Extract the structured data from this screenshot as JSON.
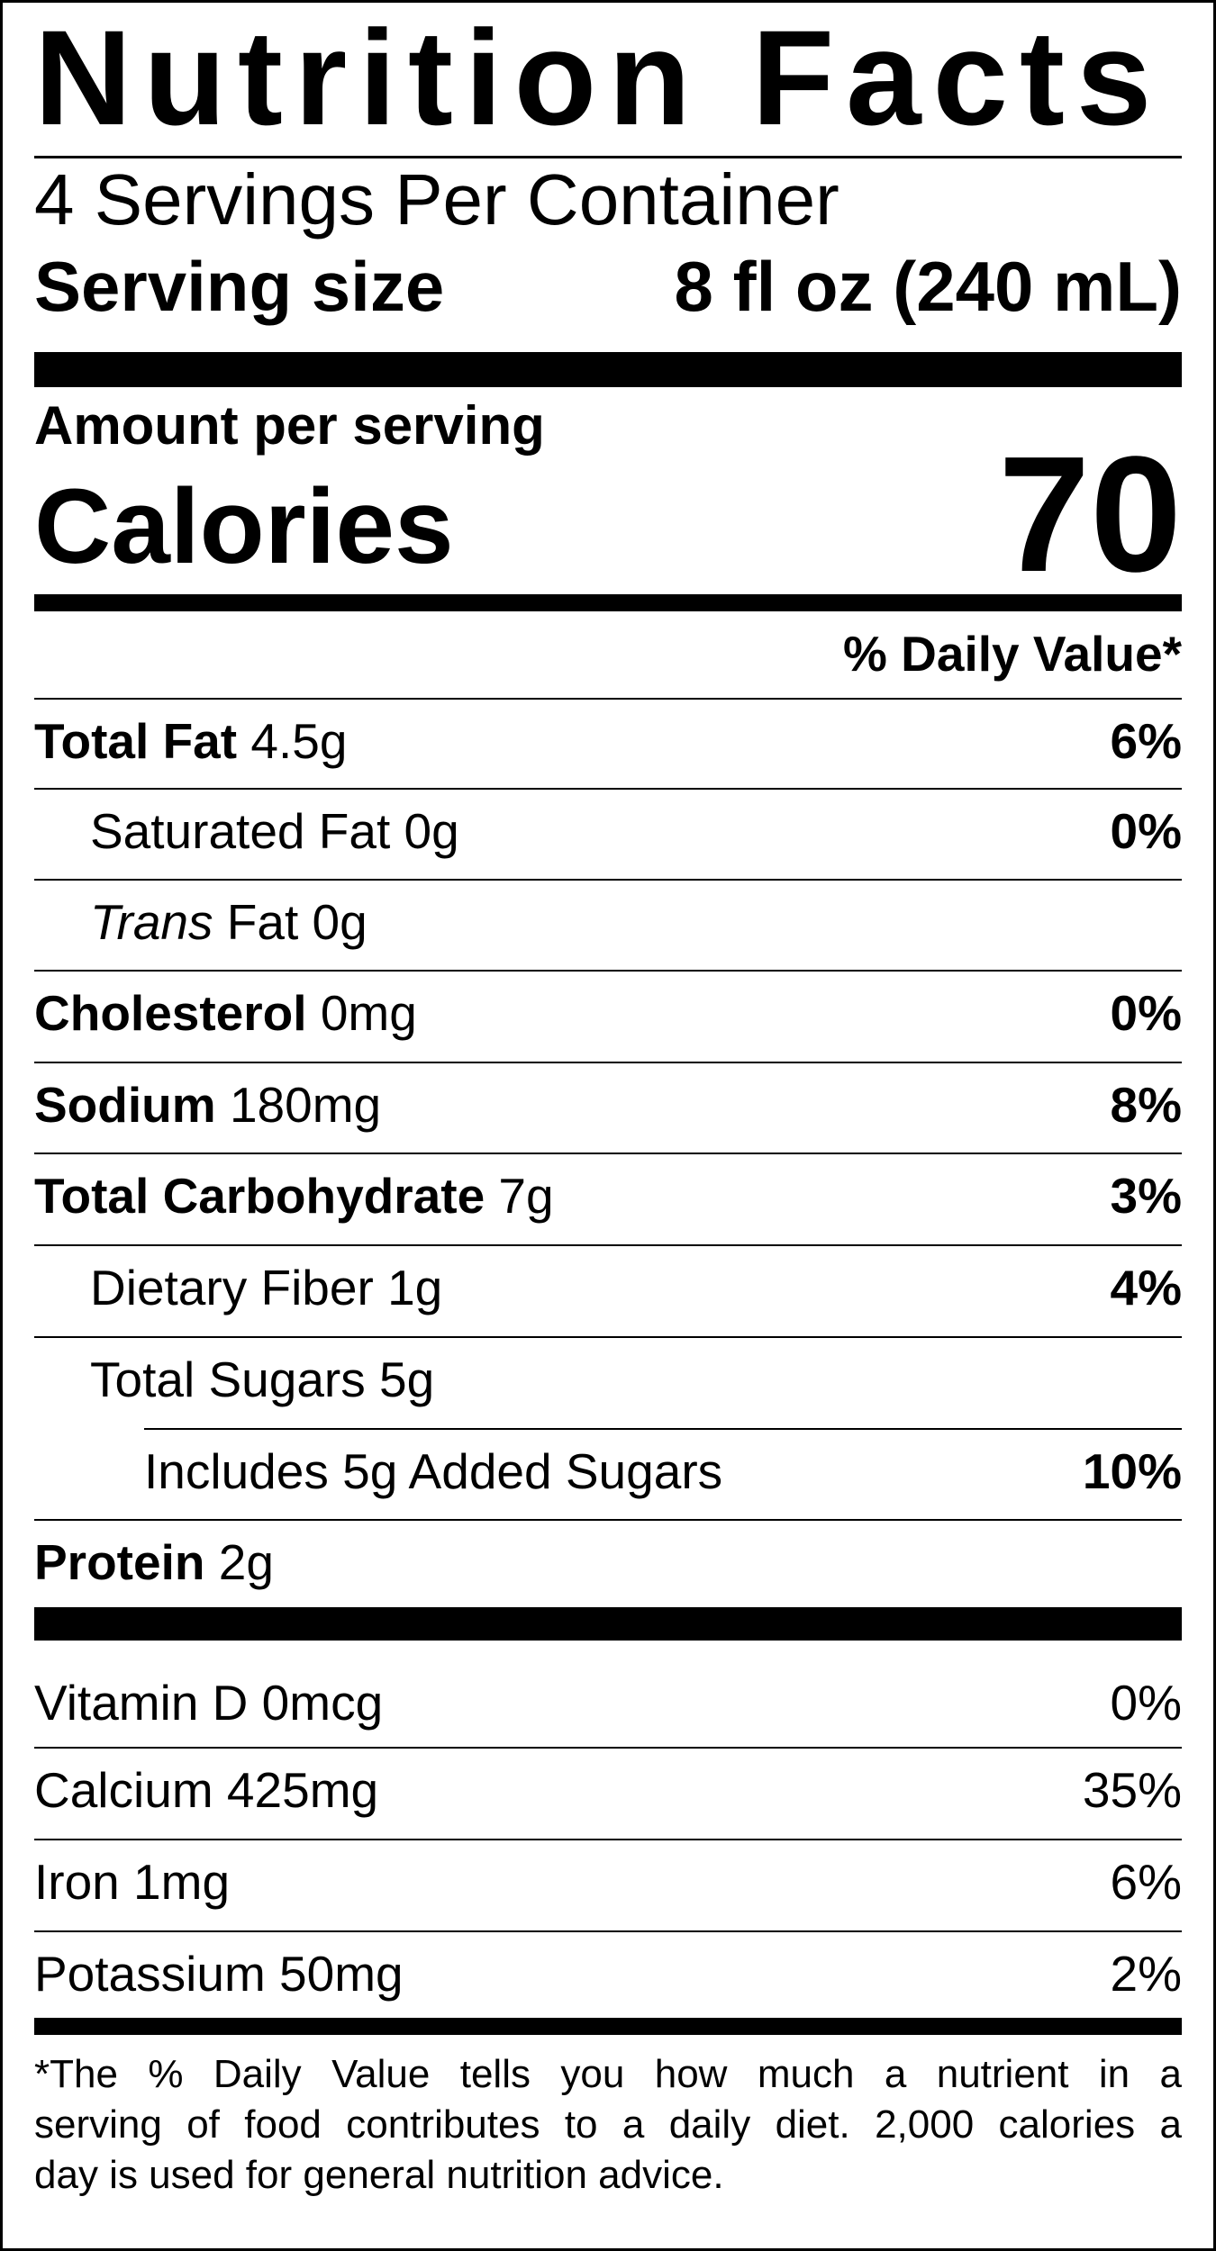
{
  "title": "Nutrition Facts",
  "servings_per_container": "4 Servings Per Container",
  "serving_size": {
    "label": "Serving size",
    "value": "8 fl oz (240 mL)"
  },
  "amount_per_serving": "Amount per serving",
  "calories": {
    "label": "Calories",
    "value": "70"
  },
  "daily_value_header": "% Daily Value*",
  "nutrients": [
    {
      "name": "Total Fat",
      "amount": "4.5g",
      "dv": "6%",
      "bold": true,
      "indent": 0
    },
    {
      "name": "Saturated Fat",
      "amount": "0g",
      "dv": "0%",
      "bold": false,
      "indent": 1
    },
    {
      "name": "Trans",
      "name_suffix": "Fat",
      "amount": "0g",
      "dv": "",
      "bold": false,
      "italic": true,
      "indent": 1
    },
    {
      "name": "Cholesterol",
      "amount": "0mg",
      "dv": "0%",
      "bold": true,
      "indent": 0
    },
    {
      "name": "Sodium",
      "amount": "180mg",
      "dv": "8%",
      "bold": true,
      "indent": 0
    },
    {
      "name": "Total Carbohydrate",
      "amount": "7g",
      "dv": "3%",
      "bold": true,
      "indent": 0
    },
    {
      "name": "Dietary Fiber",
      "amount": "1g",
      "dv": "4%",
      "bold": false,
      "indent": 1
    },
    {
      "name": "Total Sugars",
      "amount": "5g",
      "dv": "",
      "bold": false,
      "indent": 1
    },
    {
      "name": "Includes 5g Added Sugars",
      "amount": "",
      "dv": "10%",
      "bold": false,
      "indent": 2
    },
    {
      "name": "Protein",
      "amount": "2g",
      "dv": "",
      "bold": true,
      "indent": 0
    }
  ],
  "vitamins": [
    {
      "name": "Vitamin D",
      "amount": "0mcg",
      "dv": "0%"
    },
    {
      "name": "Calcium",
      "amount": "425mg",
      "dv": "35%"
    },
    {
      "name": "Iron",
      "amount": "1mg",
      "dv": "6%"
    },
    {
      "name": "Potassium",
      "amount": "50mg",
      "dv": "2%"
    }
  ],
  "footnote_lines": [
    "*The % Daily Value tells you how much a nutrient in a",
    "serving of food contributes to a daily diet. 2,000 calories a",
    "day is used for general nutrition advice."
  ]
}
